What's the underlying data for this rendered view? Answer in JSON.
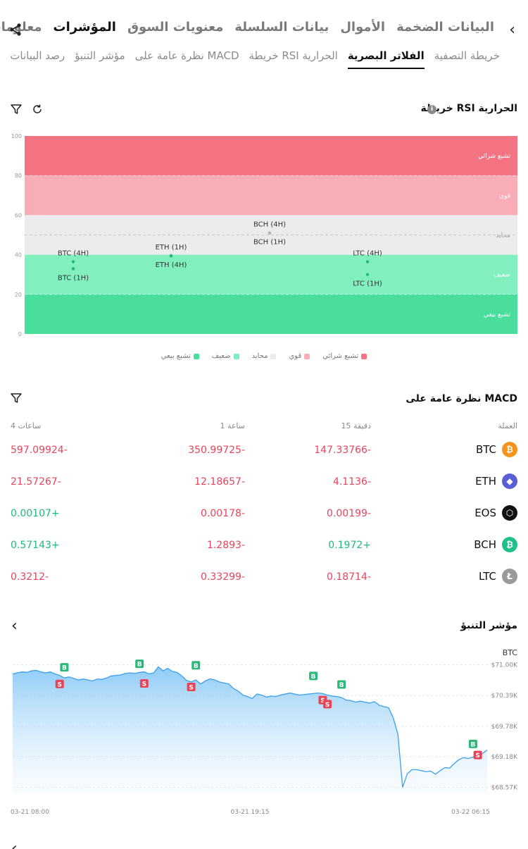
{
  "top_tabs": [
    "البيانات الضخمة",
    "الأموال",
    "بيانات السلسلة",
    "معنويات السوق",
    "المؤشرات",
    "معلومات"
  ],
  "top_active": "المؤشرات",
  "sub_tabs": [
    "خريطة التصفية",
    "الفلاتر البصرية",
    "خريطة RSI الحرارية",
    "نظرة عامة على MACD",
    "مؤشر التنبؤ",
    "رصد البيانات"
  ],
  "sub_active": "الفلاتر البصرية",
  "rsi": {
    "title": "خريطة RSI الحرارية",
    "info": "i",
    "y_ticks": [
      "100",
      "80",
      "60",
      "40",
      "20",
      "0"
    ],
    "zones": [
      {
        "label": "تشبع شرائي",
        "from": 80,
        "to": 100,
        "color": "#f37382"
      },
      {
        "label": "قوي",
        "from": 60,
        "to": 80,
        "color": "#f9adb6"
      },
      {
        "label": "محايد",
        "from": 40,
        "to": 60,
        "color": "#ececec"
      },
      {
        "label": "ضعيف",
        "from": 20,
        "to": 40,
        "color": "#82efbe"
      },
      {
        "label": "تشبع بيعي",
        "from": 0,
        "to": 20,
        "color": "#4ade9c"
      }
    ],
    "points": [
      {
        "label": "BTC (4H)",
        "x": 0.1,
        "value": 36.5,
        "label_pos": "above",
        "color": "#1fb97e"
      },
      {
        "label": "BTC (1H)",
        "x": 0.1,
        "value": 33,
        "label_pos": "below",
        "color": "#1fb97e"
      },
      {
        "label": "ETH (1H)",
        "x": 0.3,
        "value": 39.5,
        "label_pos": "above",
        "color": "#1fb97e"
      },
      {
        "label": "ETH (4H)",
        "x": 0.3,
        "value": 39.5,
        "label_pos": "below",
        "color": "#1fb97e"
      },
      {
        "label": "BCH (4H)",
        "x": 0.5,
        "value": 51,
        "label_pos": "above",
        "color": "#b5b5b5"
      },
      {
        "label": "BCH (1H)",
        "x": 0.5,
        "value": 51,
        "label_pos": "below",
        "color": "#b5b5b5"
      },
      {
        "label": "LTC (4H)",
        "x": 0.7,
        "value": 36.5,
        "label_pos": "above",
        "color": "#1fb97e"
      },
      {
        "label": "LTC (1H)",
        "x": 0.7,
        "value": 30,
        "label_pos": "below",
        "color": "#1fb97e"
      }
    ],
    "legend": [
      {
        "label": "تشبع شرائي",
        "color": "#f37382"
      },
      {
        "label": "قوي",
        "color": "#f9adb6"
      },
      {
        "label": "محايد",
        "color": "#ececec"
      },
      {
        "label": "ضعيف",
        "color": "#82efbe"
      },
      {
        "label": "تشبع بيعي",
        "color": "#4ade9c"
      }
    ]
  },
  "macd": {
    "title": "نظرة عامة على MACD",
    "headers": {
      "coin": "العملة",
      "m15": "15 دقيقة",
      "h1": "1 ساعة",
      "h4": "4 ساعات"
    },
    "rows": [
      {
        "coin": "BTC",
        "icon": "bitcoin-icon",
        "icon_color": "#f7931a",
        "glyph": "₿",
        "m15": "147.33766-",
        "h1": "350.99725-",
        "h4": "597.09924-",
        "m15_sign": "neg",
        "h1_sign": "neg",
        "h4_sign": "neg"
      },
      {
        "coin": "ETH",
        "icon": "ethereum-icon",
        "icon_color": "#5b5fd6",
        "glyph": "◆",
        "m15": "4.1136-",
        "h1": "12.18657-",
        "h4": "21.57267-",
        "m15_sign": "neg",
        "h1_sign": "neg",
        "h4_sign": "neg"
      },
      {
        "coin": "EOS",
        "icon": "eos-icon",
        "icon_color": "#111111",
        "glyph": "⬡",
        "m15": "0.00199-",
        "h1": "0.00178-",
        "h4": "0.00107+",
        "m15_sign": "neg",
        "h1_sign": "neg",
        "h4_sign": "pos"
      },
      {
        "coin": "BCH",
        "icon": "bitcoin-cash-icon",
        "icon_color": "#1fc08a",
        "glyph": "₿",
        "m15": "0.1972+",
        "h1": "1.2893-",
        "h4": "0.57143+",
        "m15_sign": "pos",
        "h1_sign": "neg",
        "h4_sign": "pos"
      },
      {
        "coin": "LTC",
        "icon": "litecoin-icon",
        "icon_color": "#9a9a9a",
        "glyph": "Ł",
        "m15": "0.18714-",
        "h1": "0.33299-",
        "h4": "0.3212-",
        "m15_sign": "neg",
        "h1_sign": "neg",
        "h4_sign": "neg"
      }
    ]
  },
  "prediction": {
    "title": "مؤشر التنبؤ",
    "coin": "BTC",
    "chart_data": {
      "type": "area",
      "title": "",
      "series": [
        {
          "name": "",
          "values": [
            70.82,
            70.84,
            70.86,
            70.85,
            70.88,
            70.89,
            70.86,
            70.84,
            70.86,
            70.82,
            70.79,
            70.74,
            70.76,
            70.73,
            70.7,
            70.72,
            70.7,
            70.68,
            70.72,
            70.71,
            70.74,
            70.78,
            70.79,
            70.8,
            70.83,
            70.84,
            70.83,
            70.85,
            70.86,
            70.82,
            70.84,
            70.96,
            70.88,
            70.93,
            70.87,
            70.85,
            70.78,
            70.69,
            70.66,
            70.7,
            70.62,
            70.68,
            70.72,
            70.7,
            70.66,
            70.64,
            70.62,
            70.53,
            70.48,
            70.4,
            70.37,
            70.33,
            70.42,
            70.4,
            70.36,
            70.38,
            70.37,
            70.4,
            70.42,
            70.44,
            70.42,
            70.4,
            70.41,
            70.42,
            70.43,
            70.44,
            70.43,
            70.4,
            70.38,
            70.37,
            70.35,
            70.3,
            70.29,
            70.26,
            70.28,
            70.26,
            70.24,
            70.27,
            70.2,
            70.17,
            70.15,
            69.95,
            69.62,
            68.57,
            68.84,
            68.92,
            68.92,
            68.9,
            68.88,
            68.89,
            68.83,
            68.9,
            68.96,
            68.95,
            69.04,
            69.12,
            69.16,
            69.14,
            69.17,
            69.19,
            69.24,
            69.31
          ]
        }
      ],
      "y_ticks": [
        "$71.00K",
        "$70.39K",
        "$69.78K",
        "$69.18K",
        "$68.57K"
      ],
      "ylim": [
        68.45,
        71.05
      ],
      "x_ticks": [
        "03-21 08:00",
        "03-21 19:15",
        "03-22 06:15"
      ],
      "markers": [
        {
          "type": "B",
          "index": 11,
          "value": 70.95
        },
        {
          "type": "S",
          "index": 10,
          "value": 70.62
        },
        {
          "type": "B",
          "index": 27,
          "value": 71.02
        },
        {
          "type": "S",
          "index": 28,
          "value": 70.63
        },
        {
          "type": "B",
          "index": 39,
          "value": 70.99
        },
        {
          "type": "S",
          "index": 38,
          "value": 70.56
        },
        {
          "type": "B",
          "index": 64,
          "value": 70.78
        },
        {
          "type": "S",
          "index": 66,
          "value": 70.3
        },
        {
          "type": "S",
          "index": 67,
          "value": 70.22
        },
        {
          "type": "B",
          "index": 70,
          "value": 70.61
        },
        {
          "type": "B",
          "index": 98,
          "value": 69.43
        },
        {
          "type": "S",
          "index": 99,
          "value": 69.21
        }
      ]
    }
  },
  "colors": {
    "neg": "#e8445b",
    "pos": "#1fb97e",
    "buy": "#2cb87a",
    "sell": "#e84457",
    "line": "#3aa0ee"
  }
}
